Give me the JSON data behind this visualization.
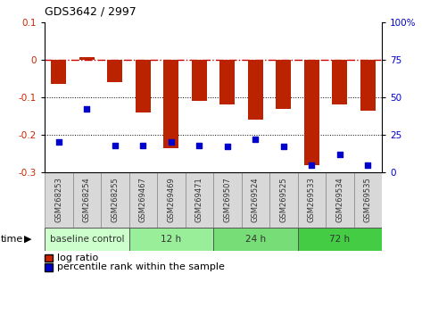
{
  "title": "GDS3642 / 2997",
  "categories": [
    "GSM268253",
    "GSM268254",
    "GSM268255",
    "GSM269467",
    "GSM269469",
    "GSM269471",
    "GSM269507",
    "GSM269524",
    "GSM269525",
    "GSM269533",
    "GSM269534",
    "GSM269535"
  ],
  "log_ratio": [
    -0.065,
    0.008,
    -0.06,
    -0.14,
    -0.235,
    -0.11,
    -0.12,
    -0.16,
    -0.13,
    -0.28,
    -0.12,
    -0.135
  ],
  "percentile": [
    20,
    42,
    18,
    18,
    20,
    18,
    17,
    22,
    17,
    5,
    12,
    5
  ],
  "ylim_left": [
    -0.3,
    0.1
  ],
  "ylim_right": [
    0,
    100
  ],
  "yticks_left": [
    0.1,
    0,
    -0.1,
    -0.2,
    -0.3
  ],
  "yticks_right": [
    100,
    75,
    50,
    25,
    0
  ],
  "bar_color": "#bb2200",
  "dot_color": "#0000cc",
  "hline_zero_color": "#cc0000",
  "hline_dot_color": "#000000",
  "groups": [
    {
      "label": "baseline control",
      "start": 0,
      "end": 3,
      "color": "#ccffcc"
    },
    {
      "label": "12 h",
      "start": 3,
      "end": 6,
      "color": "#99ee99"
    },
    {
      "label": "24 h",
      "start": 6,
      "end": 9,
      "color": "#77dd77"
    },
    {
      "label": "72 h",
      "start": 9,
      "end": 12,
      "color": "#44cc44"
    }
  ],
  "legend_bar_color": "#cc2200",
  "legend_dot_color": "#0000cc",
  "legend_label_bar": "log ratio",
  "legend_label_dot": "percentile rank within the sample",
  "xlabel_time": "time"
}
